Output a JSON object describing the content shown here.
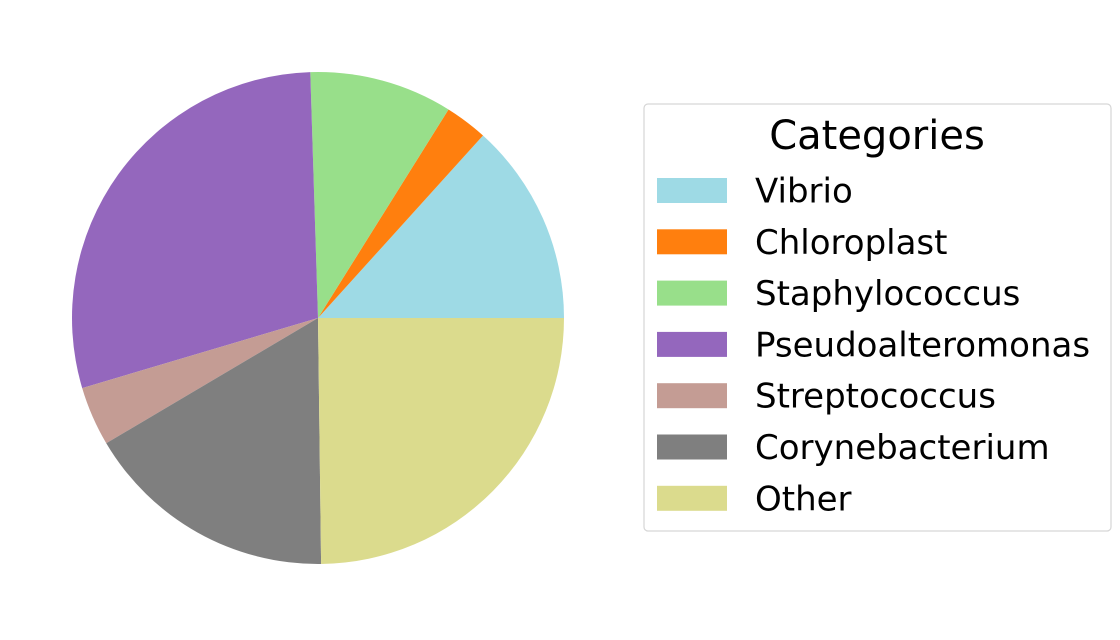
{
  "chart_data": {
    "type": "pie",
    "title": "",
    "legend_title": "Categories",
    "legend_position": "right",
    "start_angle_deg": 0,
    "direction": "counterclockwise",
    "slices": [
      {
        "label": "Vibrio",
        "value": 13.3,
        "color": "#9edae5"
      },
      {
        "label": "Chloroplast",
        "value": 2.8,
        "color": "#ff7f0e"
      },
      {
        "label": "Staphylococcus",
        "value": 9.4,
        "color": "#98df8a"
      },
      {
        "label": "Pseudoalteromonas",
        "value": 29.1,
        "color": "#9467bd"
      },
      {
        "label": "Streptococcus",
        "value": 3.9,
        "color": "#c49c94"
      },
      {
        "label": "Corynebacterium",
        "value": 16.7,
        "color": "#7f7f7f"
      },
      {
        "label": "Other",
        "value": 24.8,
        "color": "#dbdb8d"
      }
    ]
  }
}
